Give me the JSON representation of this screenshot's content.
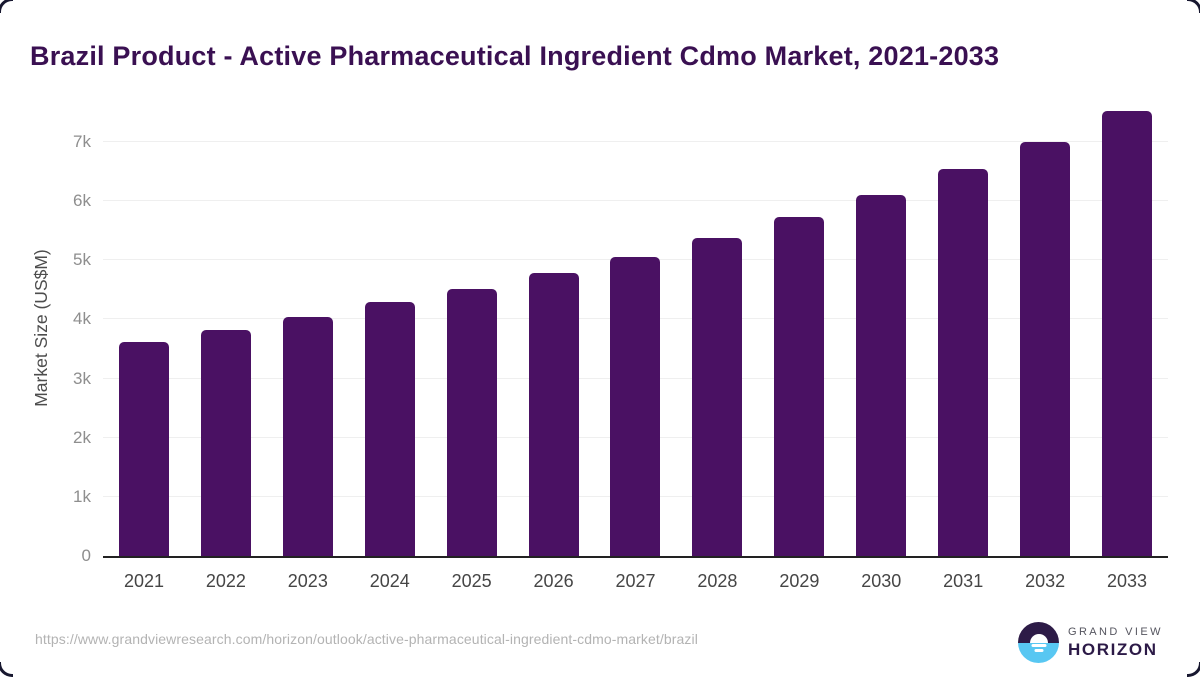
{
  "chart_data": {
    "type": "bar",
    "title": "Brazil Product - Active Pharmaceutical Ingredient Cdmo Market, 2021-2033",
    "categories": [
      "2021",
      "2022",
      "2023",
      "2024",
      "2025",
      "2026",
      "2027",
      "2028",
      "2029",
      "2030",
      "2031",
      "2032",
      "2033"
    ],
    "values": [
      3620,
      3820,
      4040,
      4290,
      4520,
      4790,
      5060,
      5380,
      5730,
      6110,
      6540,
      7000,
      7520
    ],
    "xlabel": "",
    "ylabel": "Market Size (US$M)",
    "ylim": [
      0,
      7710
    ],
    "yticks": [
      {
        "value": 0,
        "label": "0"
      },
      {
        "value": 1000,
        "label": "1k"
      },
      {
        "value": 2000,
        "label": "2k"
      },
      {
        "value": 3000,
        "label": "3k"
      },
      {
        "value": 4000,
        "label": "4k"
      },
      {
        "value": 5000,
        "label": "5k"
      },
      {
        "value": 6000,
        "label": "6k"
      },
      {
        "value": 7000,
        "label": "7k"
      }
    ],
    "grid": "horizontal",
    "legend": false,
    "bar_color": "#4a1163"
  },
  "footer": {
    "source_url": "https://www.grandviewresearch.com/horizon/outlook/active-pharmaceutical-ingredient-cdmo-market/brazil",
    "logo": {
      "line1": "GRAND VIEW",
      "line2": "HORIZON"
    }
  },
  "colors": {
    "bar": "#4a1163",
    "title_text": "#3a1052",
    "axis_line": "#222222",
    "gridline": "#efefef",
    "y_tick_text": "#8e8e8e",
    "x_tick_text": "#454545",
    "url_text": "#b3b3b3",
    "logo_dark": "#2d1b47",
    "logo_blue": "#58c7f2"
  }
}
